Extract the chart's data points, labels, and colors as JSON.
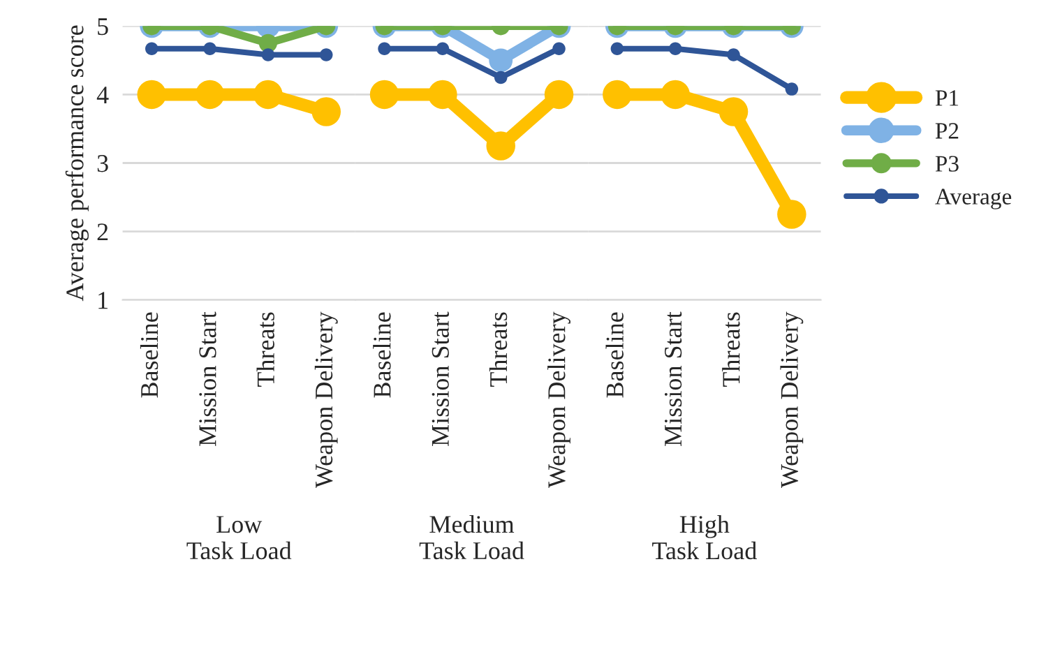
{
  "chart_data": [
    {
      "type": "line",
      "ylabel": "Average performance score",
      "xlabel": "Low\nTask Load",
      "categories": [
        "Baseline",
        "Mission Start",
        "Threats",
        "Weapon Delivery"
      ],
      "ylim": [
        1,
        5
      ],
      "yticks": [
        1,
        2,
        3,
        4,
        5
      ],
      "grid": "y",
      "marker": "circle",
      "series": [
        {
          "color": "#ffc000",
          "values": [
            4,
            4,
            4,
            3.75
          ]
        },
        {
          "color": "#7fb2e5",
          "values": [
            5,
            5,
            5,
            5
          ]
        },
        {
          "color": "#70ad47",
          "values": [
            5,
            5,
            4.75,
            5
          ]
        },
        {
          "color": "#2f5597",
          "values": [
            4.67,
            4.67,
            4.58,
            4.58
          ]
        }
      ]
    },
    {
      "type": "line",
      "xlabel": "Medium\nTask Load",
      "categories": [
        "Baseline",
        "Mission Start",
        "Threats",
        "Weapon Delivery"
      ],
      "ylim": [
        1,
        5
      ],
      "yticks": [
        1,
        2,
        3,
        4,
        5
      ],
      "tick_labels": "x",
      "grid": "y",
      "marker": "circle",
      "series": [
        {
          "color": "#ffc000",
          "values": [
            4,
            4,
            3.25,
            4
          ]
        },
        {
          "color": "#7fb2e5",
          "values": [
            5,
            5,
            4.5,
            5
          ]
        },
        {
          "color": "#70ad47",
          "values": [
            5,
            5,
            5,
            5
          ]
        },
        {
          "color": "#2f5597",
          "values": [
            4.67,
            4.67,
            4.25,
            4.67
          ]
        }
      ]
    },
    {
      "type": "line",
      "xlabel": "High\nTask Load",
      "categories": [
        "Baseline",
        "Mission Start",
        "Threats",
        "Weapon Delivery"
      ],
      "ylim": [
        1,
        5
      ],
      "yticks": [
        1,
        2,
        3,
        4,
        5
      ],
      "tick_labels": "x",
      "grid": "y",
      "marker": "circle",
      "legend": "right",
      "series": [
        {
          "name": "P1",
          "color": "#ffc000",
          "values": [
            4,
            4,
            3.75,
            2.25
          ]
        },
        {
          "name": "P2",
          "color": "#7fb2e5",
          "values": [
            5,
            5,
            5,
            5
          ]
        },
        {
          "name": "P3",
          "color": "#70ad47",
          "values": [
            5,
            5,
            5,
            5
          ]
        },
        {
          "name": "Average",
          "color": "#2f5597",
          "values": [
            4.67,
            4.67,
            4.58,
            4.08
          ]
        }
      ]
    }
  ]
}
